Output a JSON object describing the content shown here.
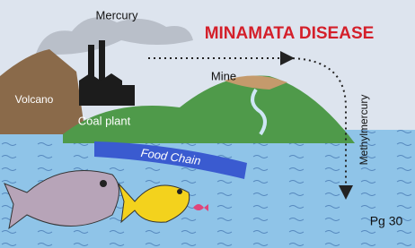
{
  "title": "MINAMATA DISEASE",
  "labels": {
    "mercury": "Mercury",
    "volcano": "Volcano",
    "coal_plant": "Coal plant",
    "mine": "Mine",
    "methylmercury": "Methylmercury",
    "food_chain": "Food Chain"
  },
  "page_number": "Pg 30"
}
